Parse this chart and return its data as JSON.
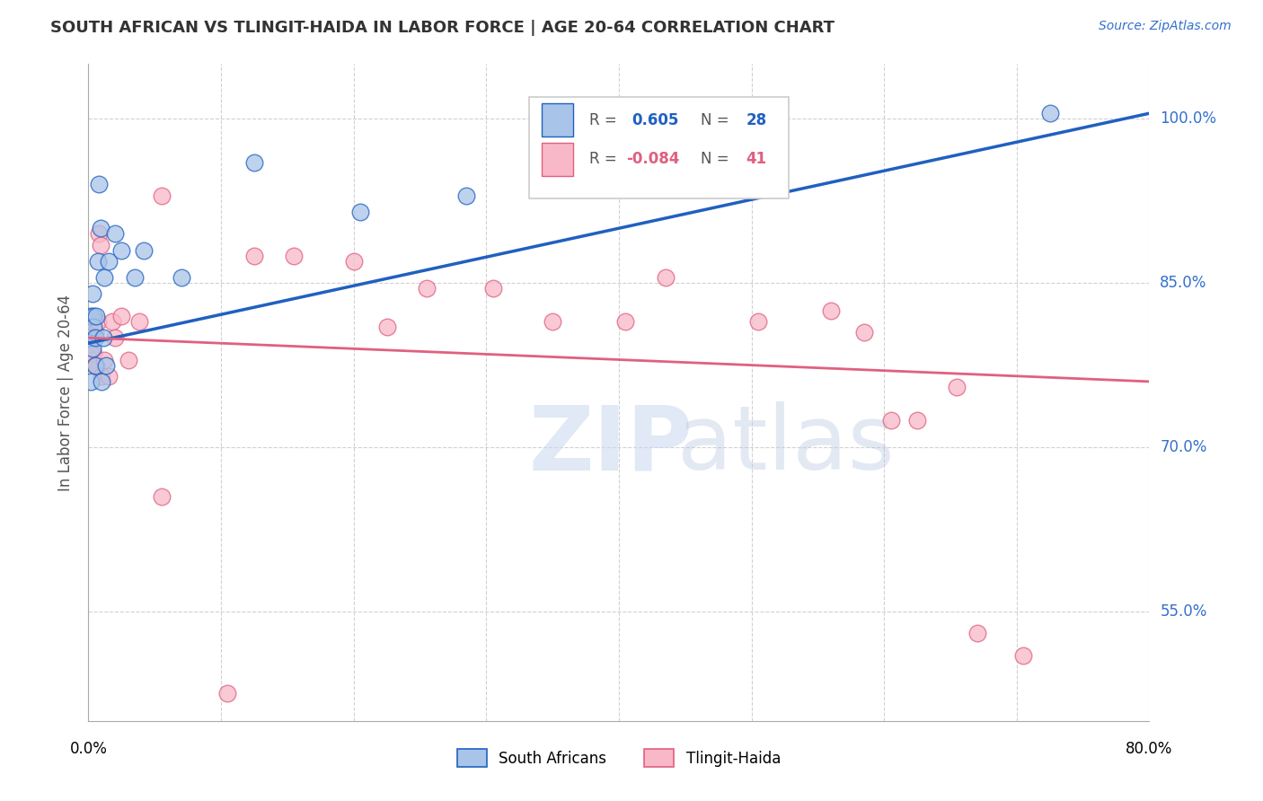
{
  "title": "SOUTH AFRICAN VS TLINGIT-HAIDA IN LABOR FORCE | AGE 20-64 CORRELATION CHART",
  "source": "Source: ZipAtlas.com",
  "ylabel": "In Labor Force | Age 20-64",
  "xlim": [
    0.0,
    0.8
  ],
  "ylim": [
    0.45,
    1.05
  ],
  "xtick_positions": [
    0.0,
    0.1,
    0.2,
    0.3,
    0.4,
    0.5,
    0.6,
    0.7,
    0.8
  ],
  "ytick_positions": [
    0.55,
    0.7,
    0.85,
    1.0
  ],
  "ytick_labels": [
    "55.0%",
    "70.0%",
    "85.0%",
    "100.0%"
  ],
  "blue_R": 0.605,
  "blue_N": 28,
  "pink_R": -0.084,
  "pink_N": 41,
  "blue_scatter": [
    [
      0.001,
      0.8
    ],
    [
      0.002,
      0.82
    ],
    [
      0.002,
      0.76
    ],
    [
      0.003,
      0.84
    ],
    [
      0.003,
      0.79
    ],
    [
      0.004,
      0.82
    ],
    [
      0.004,
      0.81
    ],
    [
      0.005,
      0.8
    ],
    [
      0.005,
      0.775
    ],
    [
      0.006,
      0.82
    ],
    [
      0.007,
      0.87
    ],
    [
      0.008,
      0.94
    ],
    [
      0.009,
      0.9
    ],
    [
      0.01,
      0.76
    ],
    [
      0.011,
      0.8
    ],
    [
      0.012,
      0.855
    ],
    [
      0.013,
      0.775
    ],
    [
      0.015,
      0.87
    ],
    [
      0.02,
      0.895
    ],
    [
      0.025,
      0.88
    ],
    [
      0.035,
      0.855
    ],
    [
      0.042,
      0.88
    ],
    [
      0.07,
      0.855
    ],
    [
      0.125,
      0.96
    ],
    [
      0.205,
      0.915
    ],
    [
      0.285,
      0.93
    ],
    [
      0.405,
      0.975
    ],
    [
      0.725,
      1.005
    ]
  ],
  "pink_scatter": [
    [
      0.001,
      0.8
    ],
    [
      0.002,
      0.805
    ],
    [
      0.002,
      0.785
    ],
    [
      0.003,
      0.8
    ],
    [
      0.003,
      0.78
    ],
    [
      0.004,
      0.8
    ],
    [
      0.004,
      0.785
    ],
    [
      0.005,
      0.805
    ],
    [
      0.005,
      0.775
    ],
    [
      0.006,
      0.775
    ],
    [
      0.007,
      0.815
    ],
    [
      0.008,
      0.895
    ],
    [
      0.009,
      0.885
    ],
    [
      0.01,
      0.765
    ],
    [
      0.012,
      0.78
    ],
    [
      0.015,
      0.765
    ],
    [
      0.018,
      0.815
    ],
    [
      0.02,
      0.8
    ],
    [
      0.025,
      0.82
    ],
    [
      0.03,
      0.78
    ],
    [
      0.038,
      0.815
    ],
    [
      0.055,
      0.93
    ],
    [
      0.125,
      0.875
    ],
    [
      0.155,
      0.875
    ],
    [
      0.2,
      0.87
    ],
    [
      0.225,
      0.81
    ],
    [
      0.255,
      0.845
    ],
    [
      0.305,
      0.845
    ],
    [
      0.35,
      0.815
    ],
    [
      0.405,
      0.815
    ],
    [
      0.435,
      0.855
    ],
    [
      0.505,
      0.815
    ],
    [
      0.56,
      0.825
    ],
    [
      0.585,
      0.805
    ],
    [
      0.605,
      0.725
    ],
    [
      0.625,
      0.725
    ],
    [
      0.655,
      0.755
    ],
    [
      0.705,
      0.51
    ],
    [
      0.105,
      0.475
    ],
    [
      0.055,
      0.655
    ],
    [
      0.67,
      0.53
    ]
  ],
  "blue_color": "#a8c4e8",
  "pink_color": "#f8b8c8",
  "blue_line_color": "#2060c0",
  "pink_line_color": "#e06080",
  "watermark_zip": "ZIP",
  "watermark_atlas": "atlas",
  "axis_label_color": "#3370cc",
  "title_color": "#333333",
  "grid_color": "#cccccc",
  "legend_label_color": "#555555"
}
